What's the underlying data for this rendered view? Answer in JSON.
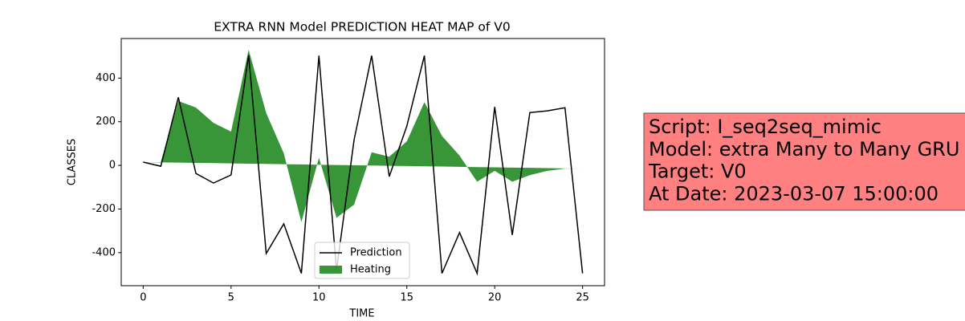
{
  "chart_data": {
    "type": "line_area",
    "title": "EXTRA RNN Model PREDICTION HEAT MAP of V0",
    "x_label": "TIME",
    "y_label": "CLASSES",
    "x": [
      0,
      1,
      2,
      3,
      4,
      5,
      6,
      7,
      8,
      9,
      10,
      11,
      12,
      13,
      14,
      15,
      16,
      17,
      18,
      19,
      20,
      21,
      22,
      23,
      24,
      25
    ],
    "series": [
      {
        "name": "Prediction",
        "color": "#000000",
        "kind": "line",
        "values": [
          15,
          -4,
          312,
          -37,
          -81,
          -44,
          505,
          -404,
          -268,
          -495,
          503,
          -480,
          117,
          503,
          -51,
          180,
          503,
          -495,
          -308,
          -495,
          268,
          -319,
          242,
          250,
          264,
          -495
        ]
      },
      {
        "name": "Heating",
        "color": "#228b22",
        "kind": "area",
        "values": [
          15,
          15,
          295,
          265,
          195,
          155,
          530,
          240,
          55,
          -260,
          35,
          -240,
          -180,
          60,
          40,
          110,
          290,
          135,
          45,
          -75,
          -25,
          -75,
          -45,
          -25,
          -15,
          -15
        ],
        "lower": [
          15,
          13.8,
          12.6,
          11.4,
          10.2,
          9,
          7.8,
          6.6,
          5.4,
          4.2,
          3,
          1.8,
          0.6,
          -0.6,
          -1.8,
          -3,
          -4.2,
          -5.4,
          -6.6,
          -7.8,
          -9,
          -10.2,
          -11.4,
          -12.6,
          -13.8,
          -15
        ]
      }
    ],
    "xlim": [
      -1.25,
      26.25
    ],
    "ylim": [
      -551.5,
      581.5
    ],
    "xticks": [
      0,
      5,
      10,
      15,
      20,
      25
    ],
    "yticks": [
      -400,
      -200,
      0,
      200,
      400
    ],
    "grid": false,
    "legend": "lower center",
    "info_box": [
      "Script: I_seq2seq_mimic",
      "Model: extra Many to Many GRU",
      "Target: V0",
      "At Date: 2023-03-07 15:00:00"
    ],
    "info_box_color": "#ff8080"
  }
}
